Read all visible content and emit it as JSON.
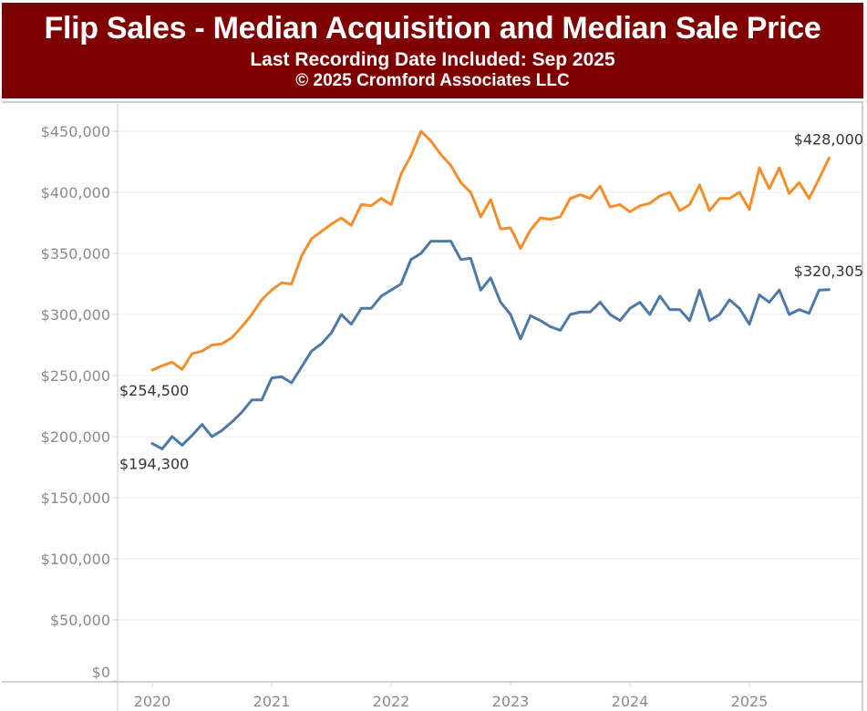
{
  "header": {
    "title": "Flip Sales - Median Acquisition and Median Sale Price",
    "subtitle": "Last Recording Date Included: Sep 2025",
    "copyright": "© 2025 Cromford Associates LLC",
    "background_color": "#7f0000"
  },
  "chart_data": {
    "type": "line",
    "title": "Flip Sales - Median Acquisition and Median Sale Price",
    "subtitle": "Last Recording Date Included: Sep 2025",
    "xlabel": "",
    "ylabel": "",
    "ylim": [
      0,
      460000
    ],
    "grid": true,
    "legend": "none",
    "y_ticks": [
      0,
      50000,
      100000,
      150000,
      200000,
      250000,
      300000,
      350000,
      400000,
      450000
    ],
    "y_tick_labels": [
      "$0",
      "$50,000",
      "$100,000",
      "$150,000",
      "$200,000",
      "$250,000",
      "$300,000",
      "$350,000",
      "$400,000",
      "$450,000"
    ],
    "x_tick_labels": [
      "2020",
      "2021",
      "2022",
      "2023",
      "2024",
      "2025"
    ],
    "x_start": "Jan 2020",
    "x_end": "Sep 2025",
    "x_interval": "month",
    "series": [
      {
        "name": "Median Sale Price",
        "color": "#f28e2b",
        "values": [
          254500,
          258000,
          261000,
          255000,
          268000,
          270000,
          275000,
          276000,
          281000,
          290000,
          300000,
          312000,
          320000,
          326000,
          325000,
          348000,
          362000,
          368000,
          374000,
          379000,
          373000,
          390000,
          389000,
          395000,
          390000,
          415000,
          430000,
          450000,
          442000,
          431000,
          422000,
          408000,
          400000,
          380000,
          394000,
          370000,
          371000,
          354000,
          369000,
          379000,
          378000,
          380000,
          395000,
          398000,
          395000,
          405000,
          388000,
          390000,
          384000,
          389000,
          391000,
          397000,
          400000,
          385000,
          390000,
          406000,
          385000,
          395000,
          395000,
          400000,
          386000,
          420000,
          403000,
          420000,
          399000,
          408000,
          395000,
          411000,
          428000
        ],
        "first_label": "$254,500",
        "last_label": "$428,000"
      },
      {
        "name": "Median Acquisition Price",
        "color": "#4e79a7",
        "values": [
          194300,
          190000,
          200000,
          193000,
          201000,
          210000,
          200000,
          205000,
          212000,
          220000,
          230000,
          230000,
          248000,
          249000,
          244000,
          257000,
          270000,
          276000,
          285000,
          300000,
          292000,
          305000,
          305000,
          315000,
          320000,
          325000,
          345000,
          350000,
          360000,
          360000,
          360000,
          345000,
          346000,
          320000,
          330000,
          310000,
          300000,
          280000,
          299000,
          295000,
          290000,
          287000,
          300000,
          302000,
          302000,
          310000,
          300000,
          295000,
          305000,
          310000,
          300000,
          315000,
          304000,
          304000,
          295000,
          320000,
          295000,
          300000,
          312000,
          305000,
          292000,
          316000,
          310000,
          320000,
          300000,
          304000,
          301000,
          320000,
          320305
        ],
        "first_label": "$194,300",
        "last_label": "$320,305"
      }
    ]
  }
}
